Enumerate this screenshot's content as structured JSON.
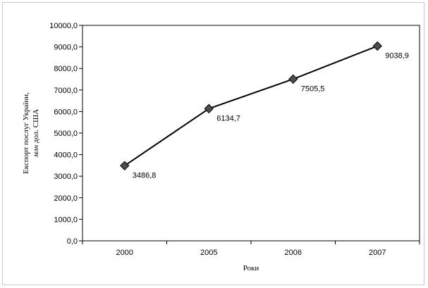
{
  "chart_data": {
    "type": "line",
    "title": "",
    "categories": [
      "2000",
      "2005",
      "2006",
      "2007"
    ],
    "series": [
      {
        "values": [
          3486.8,
          6134.7,
          7505.5,
          9038.9
        ],
        "data_labels": [
          "3486,8",
          "6134,7",
          "7505,5",
          "9038,9"
        ],
        "color": "#000000",
        "marker": "diamond"
      }
    ],
    "ylim": [
      0,
      10000
    ],
    "y_ticks": [
      0,
      1000,
      2000,
      3000,
      4000,
      5000,
      6000,
      7000,
      8000,
      9000,
      10000
    ],
    "y_tick_labels": [
      "0,0",
      "1000,0",
      "2000,0",
      "3000,0",
      "4000,0",
      "5000,0",
      "6000,0",
      "7000,0",
      "8000,0",
      "9000,0",
      "10000,0"
    ],
    "xlabel": "Роки",
    "ylabel": {
      "line1": "Експорт послуг України,",
      "line2_italic": "млн",
      "line2_rest": " дол. США"
    },
    "grid": false,
    "legend": "none"
  }
}
